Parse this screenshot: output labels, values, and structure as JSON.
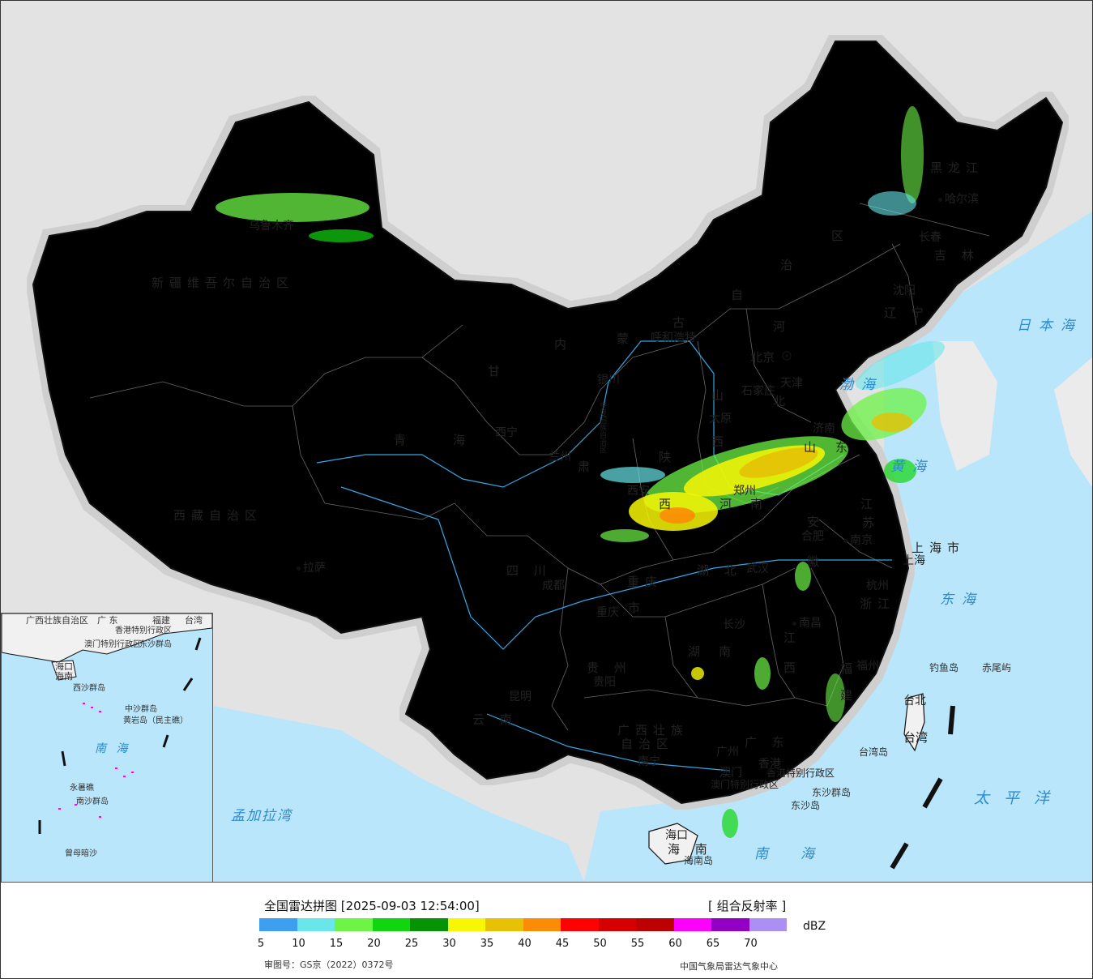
{
  "legend": {
    "title": "全国雷达拼图 [2025-09-03 12:54:00]",
    "product": "[ 组合反射率 ]",
    "unit": "dBZ",
    "colors": [
      "#3e9ff1",
      "#68e6e9",
      "#6ef347",
      "#10d610",
      "#079306",
      "#f7f705",
      "#e6c105",
      "#fb8c05",
      "#fe0101",
      "#d70000",
      "#bd0000",
      "#fd01fd",
      "#9200c6",
      "#ac8ff2"
    ],
    "ticks": [
      "5",
      "10",
      "15",
      "20",
      "25",
      "30",
      "35",
      "40",
      "45",
      "50",
      "55",
      "60",
      "65",
      "70"
    ],
    "approval": "审图号：GS京（2022）0372号",
    "credit": "中国气象局雷达气象中心"
  },
  "map": {
    "provinces": {
      "xinjiang": "新疆维吾尔自治区",
      "xizang": "西藏自治区",
      "qinghai_1": "青",
      "qinghai_2": "海",
      "gansu_1": "甘",
      "gansu_2": "肃",
      "neimenggu_1": "内",
      "neimenggu_2": "蒙",
      "neimenggu_3": "古",
      "neimenggu_4": "自",
      "neimenggu_5": "治",
      "neimenggu_6": "区",
      "heilongjiang": "黑龙江",
      "jilin": "吉 林",
      "liaoning": "辽 宁",
      "hebei_1": "河",
      "hebei_2": "北",
      "shanxi_1": "山",
      "shanxi_2": "西",
      "shaanxi_1": "陕",
      "shaanxi_2": "西",
      "shandong_1": "山",
      "shandong_2": "东",
      "henan_1": "河",
      "henan_2": "南",
      "jiangsu_1": "江",
      "jiangsu_2": "苏",
      "anhui_1": "安",
      "anhui_2": "徽",
      "shanghai": "上海市",
      "zhejiang": "浙江",
      "hubei": "湖 北",
      "hunan_1": "湖",
      "hunan_2": "南",
      "jiangxi_1": "江",
      "jiangxi_2": "西",
      "fujian_1": "福",
      "fujian_2": "建",
      "sichuan": "四 川",
      "chongqing_1": "重庆",
      "chongqing_2": "市",
      "guizhou": "贵 州",
      "yunnan": "云 南",
      "guangxi_1": "广西壮族",
      "guangxi_2": "自治区",
      "guangdong": "广 东",
      "hainan": "海 南",
      "taiwan": "台湾",
      "ningxia": "宁夏回族自治区",
      "hk": "香港特别行政区",
      "macau": "澳门特别行政区"
    },
    "cities": {
      "urumqi": "乌鲁木齐",
      "lhasa": "拉萨",
      "xining": "西宁",
      "lanzhou": "兰州",
      "yinchuan": "银川",
      "hohhot": "呼和浩特",
      "beijing": "北京",
      "tianjin": "天津",
      "shijiazhuang": "石家庄",
      "taiyuan": "太原",
      "jinan": "济南",
      "zhengzhou": "郑州",
      "xian": "西安",
      "hefei": "合肥",
      "nanjing": "南京",
      "shanghai": "上海",
      "hangzhou": "杭州",
      "wuhan": "武汉",
      "changsha": "长沙",
      "nanchang": "南昌",
      "fuzhou": "福州",
      "chengdu": "成都",
      "chongqing": "重庆",
      "guiyang": "贵阳",
      "kunming": "昆明",
      "nanning": "南宁",
      "guangzhou": "广州",
      "hongkong": "香港",
      "macao": "澳门",
      "haikou": "海口",
      "taipei": "台北",
      "harbin": "哈尔滨",
      "changchun": "长春",
      "shenyang": "沈阳"
    },
    "seas": {
      "riben": "日本海",
      "bohai": "渤海",
      "huanghai": "黄海",
      "donghai": "东海",
      "taipingyang": "太平洋",
      "nanhai": "南海",
      "mengjiala": "孟加拉湾"
    },
    "islands": {
      "diaoyu": "钓鱼岛",
      "chiwei": "赤尾屿",
      "taiwandao": "台湾岛",
      "dongsha_group": "东沙群岛",
      "dongsha": "东沙岛",
      "hainandao": "海南岛"
    },
    "inset": {
      "guangxi": "广西壮族自治区",
      "guangdong": "广 东",
      "fujian": "福建",
      "taiwan": "台湾",
      "hk": "香港特别行政区",
      "macau": "澳门特别行政区",
      "haikou": "海口",
      "hainan": "海南",
      "dongsha": "东沙群岛",
      "xisha": "西沙群岛",
      "zhongsha": "中沙群岛",
      "huangyan": "黄岩岛（民主礁）",
      "nanhai": "南 海",
      "yongshu": "永暑礁",
      "nansha": "南沙群岛",
      "zengmu": "曾母暗沙"
    }
  }
}
